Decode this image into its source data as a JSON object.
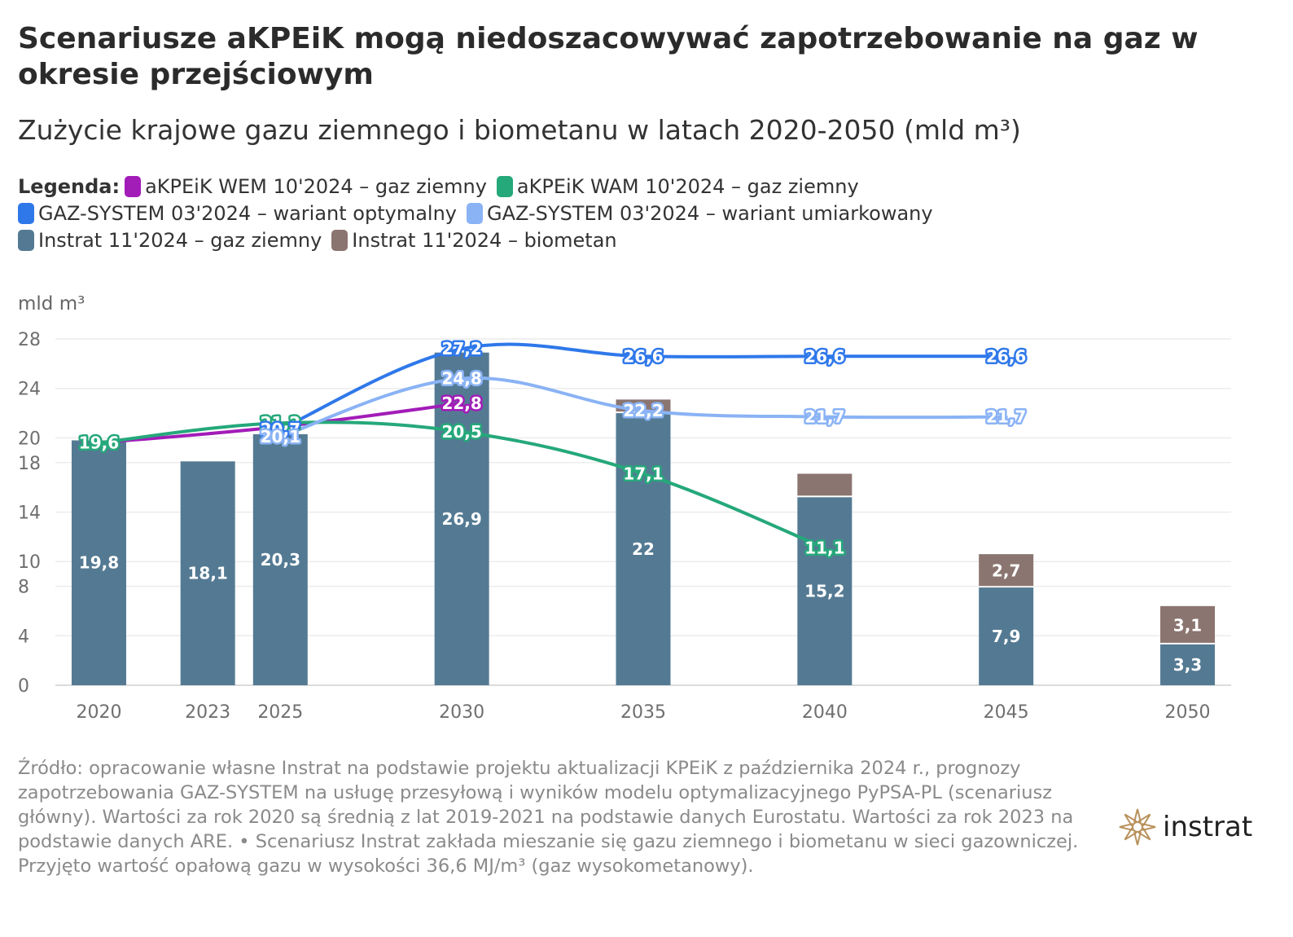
{
  "title": "Scenariusze aKPEiK mogą niedoszacowywać zapotrzebowanie na gaz w okresie przejściowym",
  "subtitle": "Zużycie krajowe gazu ziemnego i biometanu w latach 2020-2050 (mld m³)",
  "legend": {
    "title": "Legenda:",
    "rows": [
      [
        {
          "label": "aKPEiK WEM 10'2024 – gaz ziemny",
          "color": "#a21cb8"
        },
        {
          "label": "aKPEiK WAM 10'2024 – gaz ziemny",
          "color": "#25a87a"
        }
      ],
      [
        {
          "label": "GAZ-SYSTEM 03'2024 – wariant optymalny",
          "color": "#2f78ea"
        },
        {
          "label": "GAZ-SYSTEM 03'2024 – wariant umiarkowany",
          "color": "#8ab3f5"
        }
      ],
      [
        {
          "label": "Instrat 11'2024 – gaz ziemny",
          "color": "#547a93"
        },
        {
          "label": "Instrat 11'2024 – biometan",
          "color": "#8b7570"
        }
      ]
    ]
  },
  "unit_label": "mld m³",
  "chart_data": {
    "type": "bar",
    "x": [
      2020,
      2023,
      2025,
      2030,
      2035,
      2040,
      2045,
      2050
    ],
    "xlim": [
      2018.8,
      2051.2
    ],
    "ylim": [
      0,
      28
    ],
    "yticks": [
      0,
      4,
      8,
      10,
      14,
      18,
      20,
      24,
      28
    ],
    "grid": true,
    "stacked_bars": [
      {
        "name": "Instrat 11'2024 – gaz ziemny",
        "color": "#547a93",
        "values": [
          19.8,
          18.1,
          20.3,
          26.9,
          22,
          15.2,
          7.9,
          3.3
        ],
        "labels": [
          "19,8",
          "18,1",
          "20,3",
          "26,9",
          "22",
          "15,2",
          "7,9",
          "3,3"
        ]
      },
      {
        "name": "Instrat 11'2024 – biometan",
        "color": "#8b7570",
        "values": [
          0,
          0,
          0,
          0,
          1.1,
          1.9,
          2.7,
          3.1
        ],
        "labels": [
          "",
          "",
          "",
          "",
          "",
          "",
          "2,7",
          "3,1"
        ]
      }
    ],
    "lines": [
      {
        "name": "aKPEiK WEM 10'2024 – gaz ziemny",
        "color": "#a21cb8",
        "x": [
          2020,
          2025,
          2030
        ],
        "y": [
          19.6,
          20.9,
          22.8
        ],
        "labels": [
          "",
          "",
          "22,8"
        ]
      },
      {
        "name": "aKPEiK WAM 10'2024 – gaz ziemny",
        "color": "#25a87a",
        "x": [
          2020,
          2025,
          2030,
          2035,
          2040
        ],
        "y": [
          19.6,
          21.2,
          20.5,
          17.1,
          11.1
        ],
        "labels": [
          "19,6",
          "21,2",
          "20,5",
          "17,1",
          "11,1"
        ]
      },
      {
        "name": "GAZ-SYSTEM 03'2024 – wariant optymalny",
        "color": "#2f78ea",
        "x": [
          2025,
          2030,
          2035,
          2040,
          2045
        ],
        "y": [
          20.7,
          27.2,
          26.6,
          26.6,
          26.6
        ],
        "labels": [
          "20,7",
          "27,2",
          "26,6",
          "26,6",
          "26,6"
        ]
      },
      {
        "name": "GAZ-SYSTEM 03'2024 – wariant umiarkowany",
        "color": "#8ab3f5",
        "x": [
          2025,
          2030,
          2035,
          2040,
          2045
        ],
        "y": [
          20.1,
          24.8,
          22.2,
          21.7,
          21.7
        ],
        "labels": [
          "20,1",
          "24,8",
          "22,2",
          "21,7",
          "21,7"
        ]
      }
    ]
  },
  "source": "Źródło: opracowanie własne Instrat na podstawie projektu aktualizacji KPEiK z października 2024 r., prognozy zapotrzebowania GAZ-SYSTEM na usługę przesyłową i wyników modelu optymalizacyjnego PyPSA-PL (scenariusz główny). Wartości za rok 2020 są średnią z lat 2019-2021 na podstawie danych Eurostatu. Wartości za rok 2023 na podstawie danych ARE. • Scenariusz Instrat zakłada mieszanie się gazu ziemnego i biometanu w sieci gazowniczej. Przyjęto wartość opałową gazu w wysokości 36,6 MJ/m³ (gaz wysokometanowy).",
  "logo": {
    "text": "instrat",
    "icon": "compass-rose-icon",
    "color": "#b8915c"
  }
}
